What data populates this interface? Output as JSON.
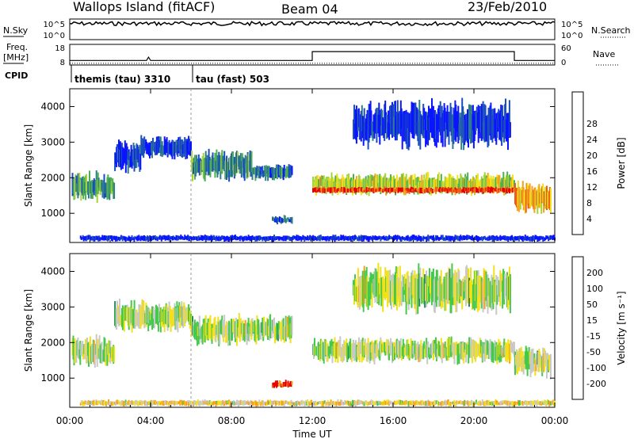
{
  "header": {
    "station": "Wallops Island (fitACF)",
    "beam": "Beam 04",
    "date": "23/Feb/2010"
  },
  "strips": {
    "nsky_label": "N.Sky",
    "nsearch_label": "N.Search",
    "freq_label": "Freq.",
    "freq_unit": "[MHz]",
    "nave_label": "Nave",
    "cpid_label": "CPID",
    "nsky_ticks": [
      "10^5",
      "10^0"
    ],
    "nsearch_ticks": [
      "10^5",
      "10^0"
    ],
    "freq_ticks": [
      "18",
      "8"
    ],
    "nave_ticks": [
      "60",
      "0"
    ]
  },
  "cpid_segments": [
    {
      "label": "themis (tau) 3310",
      "start_hour": 0,
      "end_hour": 6
    },
    {
      "label": "tau (fast) 503",
      "start_hour": 6,
      "end_hour": 24
    }
  ],
  "chart_data": [
    {
      "type": "line",
      "title": "N.Sky / N.Search",
      "x_label": "Time UT",
      "xlim_hours": [
        0,
        24
      ],
      "series": [
        {
          "name": "N.Sky",
          "style": "solid",
          "level": 0.78
        },
        {
          "name": "N.Search",
          "style": "dotted"
        }
      ]
    },
    {
      "type": "line",
      "title": "Freq / Nave",
      "ylim_freq_mhz": [
        8,
        18
      ],
      "ylim_nave": [
        0,
        60
      ],
      "series": [
        {
          "name": "Freq",
          "style": "solid",
          "points": [
            [
              0,
              10.2
            ],
            [
              3.8,
              10.2
            ],
            [
              3.9,
              11.8
            ],
            [
              4.0,
              10.2
            ],
            [
              12.0,
              10.2
            ],
            [
              12.0,
              14.5
            ],
            [
              22.0,
              14.5
            ],
            [
              22.0,
              10.2
            ],
            [
              24,
              10.2
            ]
          ]
        },
        {
          "name": "Nave",
          "style": "dotted",
          "points": [
            [
              0,
              5
            ],
            [
              24,
              5
            ]
          ]
        }
      ]
    },
    {
      "type": "heatmap",
      "title": "Power",
      "ylabel": "Slant Range [km]",
      "colorbar_label": "Power [dB]",
      "ylim": [
        180,
        4500
      ],
      "y_ticks": [
        1000,
        2000,
        3000,
        4000
      ],
      "colorbar_ticks": [
        4,
        8,
        12,
        16,
        20,
        24,
        28
      ],
      "colorbar_colors": [
        "#0a14ff",
        "#1a4dbf",
        "#2f7d8a",
        "#4caf50",
        "#a6d23a",
        "#f2e01a",
        "#f7a01a",
        "#f05a14",
        "#e60000"
      ],
      "bands": [
        {
          "t0": 0.1,
          "t1": 2.2,
          "r0": 1300,
          "r1": 2200,
          "level": 0.35
        },
        {
          "t0": 2.2,
          "t1": 3.5,
          "r0": 2100,
          "r1": 3100,
          "level": 0.1
        },
        {
          "t0": 3.5,
          "t1": 6.0,
          "r0": 2500,
          "r1": 3200,
          "level": 0.12
        },
        {
          "t0": 6.0,
          "t1": 9.0,
          "r0": 1900,
          "r1": 2800,
          "level": 0.3
        },
        {
          "t0": 9.0,
          "t1": 11.0,
          "r0": 1900,
          "r1": 2400,
          "level": 0.25
        },
        {
          "t0": 10.0,
          "t1": 11.0,
          "r0": 700,
          "r1": 950,
          "level": 0.2
        },
        {
          "t0": 12.0,
          "t1": 22.0,
          "r0": 1500,
          "r1": 2150,
          "level": 0.55
        },
        {
          "t0": 12.0,
          "t1": 22.0,
          "r0": 1550,
          "r1": 1750,
          "level": 0.9
        },
        {
          "t0": 14.0,
          "t1": 21.8,
          "r0": 2800,
          "r1": 4200,
          "level": 0.1
        },
        {
          "t0": 22.0,
          "t1": 23.8,
          "r0": 1000,
          "r1": 1900,
          "level": 0.7
        },
        {
          "t0": 0.5,
          "t1": 24.0,
          "r0": 200,
          "r1": 400,
          "level": 0.05
        }
      ]
    },
    {
      "type": "heatmap",
      "title": "Velocity",
      "ylabel": "Slant Range [km]",
      "colorbar_label": "Velocity [m s⁻¹]",
      "ylim": [
        180,
        4500
      ],
      "y_ticks": [
        1000,
        2000,
        3000,
        4000
      ],
      "colorbar_ticks": [
        "200",
        "100",
        "50",
        "15",
        "-15",
        "-50",
        "-100",
        "-200"
      ],
      "colorbar_colors": [
        "#0a14ff",
        "#2f5fb8",
        "#2e8a57",
        "#46c84a",
        "#c8c8c8",
        "#f2e01a",
        "#f7a01a",
        "#f05a14",
        "#e60000"
      ],
      "bands": [
        {
          "t0": 0.1,
          "t1": 2.2,
          "r0": 1300,
          "r1": 2200,
          "level": 0.5
        },
        {
          "t0": 2.2,
          "t1": 6.0,
          "r0": 2300,
          "r1": 3200,
          "level": 0.5
        },
        {
          "t0": 6.0,
          "t1": 11.0,
          "r0": 1900,
          "r1": 2800,
          "level": 0.5
        },
        {
          "t0": 10.0,
          "t1": 11.0,
          "r0": 700,
          "r1": 950,
          "level": 0.85
        },
        {
          "t0": 12.0,
          "t1": 22.0,
          "r0": 1400,
          "r1": 2150,
          "level": 0.5
        },
        {
          "t0": 14.0,
          "t1": 21.8,
          "r0": 2800,
          "r1": 4200,
          "level": 0.5
        },
        {
          "t0": 22.0,
          "t1": 23.8,
          "r0": 1000,
          "r1": 1900,
          "level": 0.5
        },
        {
          "t0": 0.5,
          "t1": 24.0,
          "r0": 200,
          "r1": 400,
          "level": 0.6
        }
      ]
    }
  ],
  "x_axis": {
    "label": "Time UT",
    "ticks": [
      "00:00",
      "04:00",
      "08:00",
      "12:00",
      "16:00",
      "20:00",
      "00:00"
    ]
  }
}
